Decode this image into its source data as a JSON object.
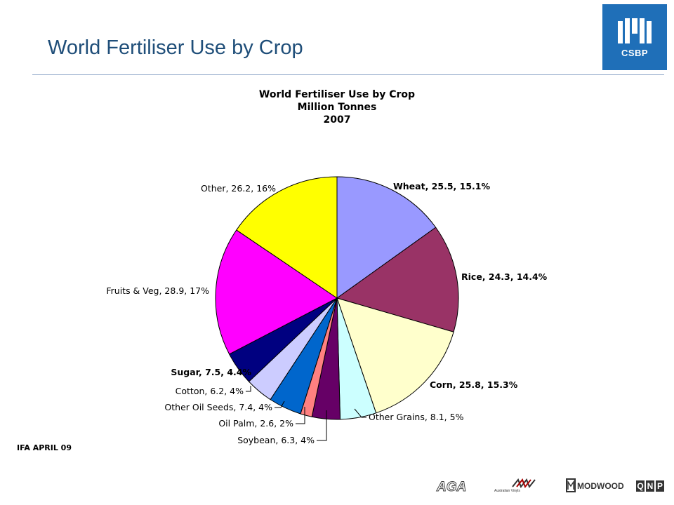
{
  "slide": {
    "title": "World Fertiliser Use by Crop",
    "source_note": "IFA APRIL 09"
  },
  "brand": {
    "logo_text": "CSBP",
    "logo_color": "#1f6fb8",
    "footer_logos": [
      "AGA",
      "Australian Vinyls",
      "MODWOOD",
      "QNP"
    ]
  },
  "chart_data": {
    "type": "pie",
    "title_lines": [
      "World Fertiliser Use by Crop",
      "Million Tonnes",
      "2007"
    ],
    "slices": [
      {
        "name": "Wheat",
        "value": 25.5,
        "label": "Wheat, 25.5, 15.1%",
        "color": "#9999ff",
        "bold": true
      },
      {
        "name": "Rice",
        "value": 24.3,
        "label": "Rice, 24.3, 14.4%",
        "color": "#993366",
        "bold": true
      },
      {
        "name": "Corn",
        "value": 25.8,
        "label": "Corn, 25.8, 15.3%",
        "color": "#ffffcc",
        "bold": true
      },
      {
        "name": "Other Grains",
        "value": 8.1,
        "label": "Other Grains, 8.1, 5%",
        "color": "#ccffff",
        "bold": false
      },
      {
        "name": "Soybean",
        "value": 6.3,
        "label": "Soybean, 6.3, 4%",
        "color": "#660066",
        "bold": false
      },
      {
        "name": "Oil Palm",
        "value": 2.6,
        "label": "Oil Palm, 2.6, 2%",
        "color": "#ff8080",
        "bold": false
      },
      {
        "name": "Other Oil Seeds",
        "value": 7.4,
        "label": "Other Oil Seeds, 7.4, 4%",
        "color": "#0066cc",
        "bold": false
      },
      {
        "name": "Cotton",
        "value": 6.2,
        "label": "Cotton, 6.2, 4%",
        "color": "#ccccff",
        "bold": false
      },
      {
        "name": "Sugar",
        "value": 7.5,
        "label": "Sugar, 7.5, 4.4%",
        "color": "#000080",
        "bold": true
      },
      {
        "name": "Fruits & Veg",
        "value": 28.9,
        "label": "Fruits & Veg, 28.9, 17%",
        "color": "#ff00ff",
        "bold": false
      },
      {
        "name": "Other",
        "value": 26.2,
        "label": "Other, 26.2, 16%",
        "color": "#ffff00",
        "bold": false
      }
    ],
    "start": "12 o'clock",
    "direction": "clockwise",
    "legend": "none (data labels)"
  }
}
